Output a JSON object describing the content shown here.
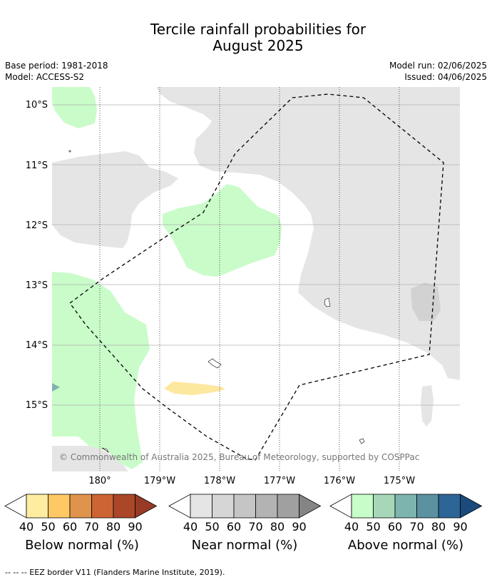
{
  "title_line1": "Tercile rainfall probabilities for",
  "title_line2": "August 2025",
  "base_period": "Base period: 1981-2018",
  "model": "Model: ACCESS-S2",
  "model_run": "Model run: 02/06/2025",
  "issued": "Issued: 04/06/2025",
  "copyright": "© Commonwealth of Australia 2025, Bureau of Meteorology, supported by COSPPac",
  "lat_labels": [
    "10°S",
    "11°S",
    "12°S",
    "13°S",
    "14°S",
    "15°S"
  ],
  "lon_labels": [
    "180°",
    "179°W",
    "178°W",
    "177°W",
    "176°W",
    "175°W"
  ],
  "colorbars": [
    {
      "name": "Below normal (%)",
      "ticks": [
        "40",
        "50",
        "60",
        "70",
        "80",
        "90"
      ],
      "under_color": "#ffffff",
      "colors": [
        "#feeca1",
        "#fec864",
        "#e0944b",
        "#cd6433",
        "#ab4628"
      ],
      "over_color": "#973a26"
    },
    {
      "name": "Near normal (%)",
      "ticks": [
        "40",
        "50",
        "60",
        "70",
        "80",
        "90"
      ],
      "under_color": "#ffffff",
      "colors": [
        "#e5e5e5",
        "#d6d6d6",
        "#c5c5c5",
        "#b3b3b3",
        "#a0a0a0"
      ],
      "over_color": "#858585"
    },
    {
      "name": "Above normal (%)",
      "ticks": [
        "40",
        "50",
        "60",
        "70",
        "80",
        "90"
      ],
      "under_color": "#ffffff",
      "colors": [
        "#c7fdc9",
        "#a6d8b8",
        "#7db4ae",
        "#5b91a0",
        "#2d6596"
      ],
      "over_color": "#1a4b7c"
    }
  ],
  "eez_note": "--  --  -- EEZ border V11 (Flanders Marine Institute, 2019).",
  "map_colors": {
    "near_normal": "#e5e5e5",
    "above_normal": "#c9fcc9",
    "below_normal": "#fde8a0",
    "grid": "#b0b0b0"
  }
}
